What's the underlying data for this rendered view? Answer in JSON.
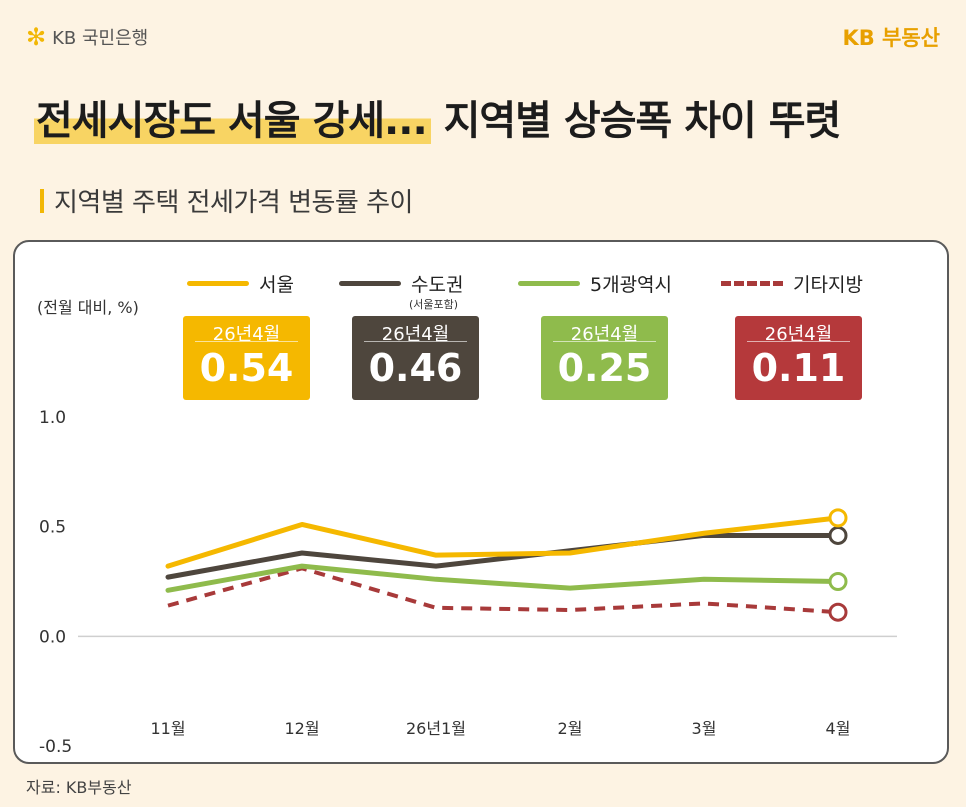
{
  "header": {
    "bank_brand": "KB 국민은행",
    "bank_logo_icon": "kb-star-icon",
    "right_brand": "KB 부동산",
    "headline_highlight": "전세시장도 서울 강세...",
    "headline_rest": "지역별 상승폭 차이 뚜렷",
    "subtitle": "지역별 주택 전세가격 변동률 추이"
  },
  "colors": {
    "seoul": "#f5b800",
    "capital": "#4e463d",
    "metro": "#8fbb4c",
    "other": "#a83a3a"
  },
  "badges": [
    {
      "label": "26년4월",
      "value": "0.54",
      "color": "#f5b800"
    },
    {
      "label": "26년4월",
      "value": "0.46",
      "color": "#4e463d"
    },
    {
      "label": "26년4월",
      "value": "0.25",
      "color": "#8fbb4c"
    },
    {
      "label": "26년4월",
      "value": "0.11",
      "color": "#b5393b"
    }
  ],
  "legend_sub": "(서울포함)",
  "source": "자료: KB부동산",
  "chart_data": {
    "type": "line",
    "ylabel": "(전월 대비, %)",
    "categories": [
      "11월",
      "12월",
      "26년1월",
      "2월",
      "3월",
      "4월"
    ],
    "y_ticks": [
      "1.0",
      "0.5",
      "0.0",
      "-0.5"
    ],
    "ylim": [
      -0.5,
      1.0
    ],
    "grid": false,
    "legend_position": "top",
    "series": [
      {
        "name": "서울",
        "values": [
          0.32,
          0.51,
          0.37,
          0.38,
          0.47,
          0.54
        ],
        "color": "#f5b800",
        "dash": false
      },
      {
        "name": "수도권",
        "values": [
          0.27,
          0.38,
          0.32,
          0.39,
          0.46,
          0.46
        ],
        "color": "#4e463d",
        "dash": false
      },
      {
        "name": "5개광역시",
        "values": [
          0.21,
          0.32,
          0.26,
          0.22,
          0.26,
          0.25
        ],
        "color": "#8fbb4c",
        "dash": false
      },
      {
        "name": "기타지방",
        "values": [
          0.14,
          0.31,
          0.13,
          0.12,
          0.15,
          0.11
        ],
        "color": "#a83a3a",
        "dash": true
      }
    ]
  }
}
